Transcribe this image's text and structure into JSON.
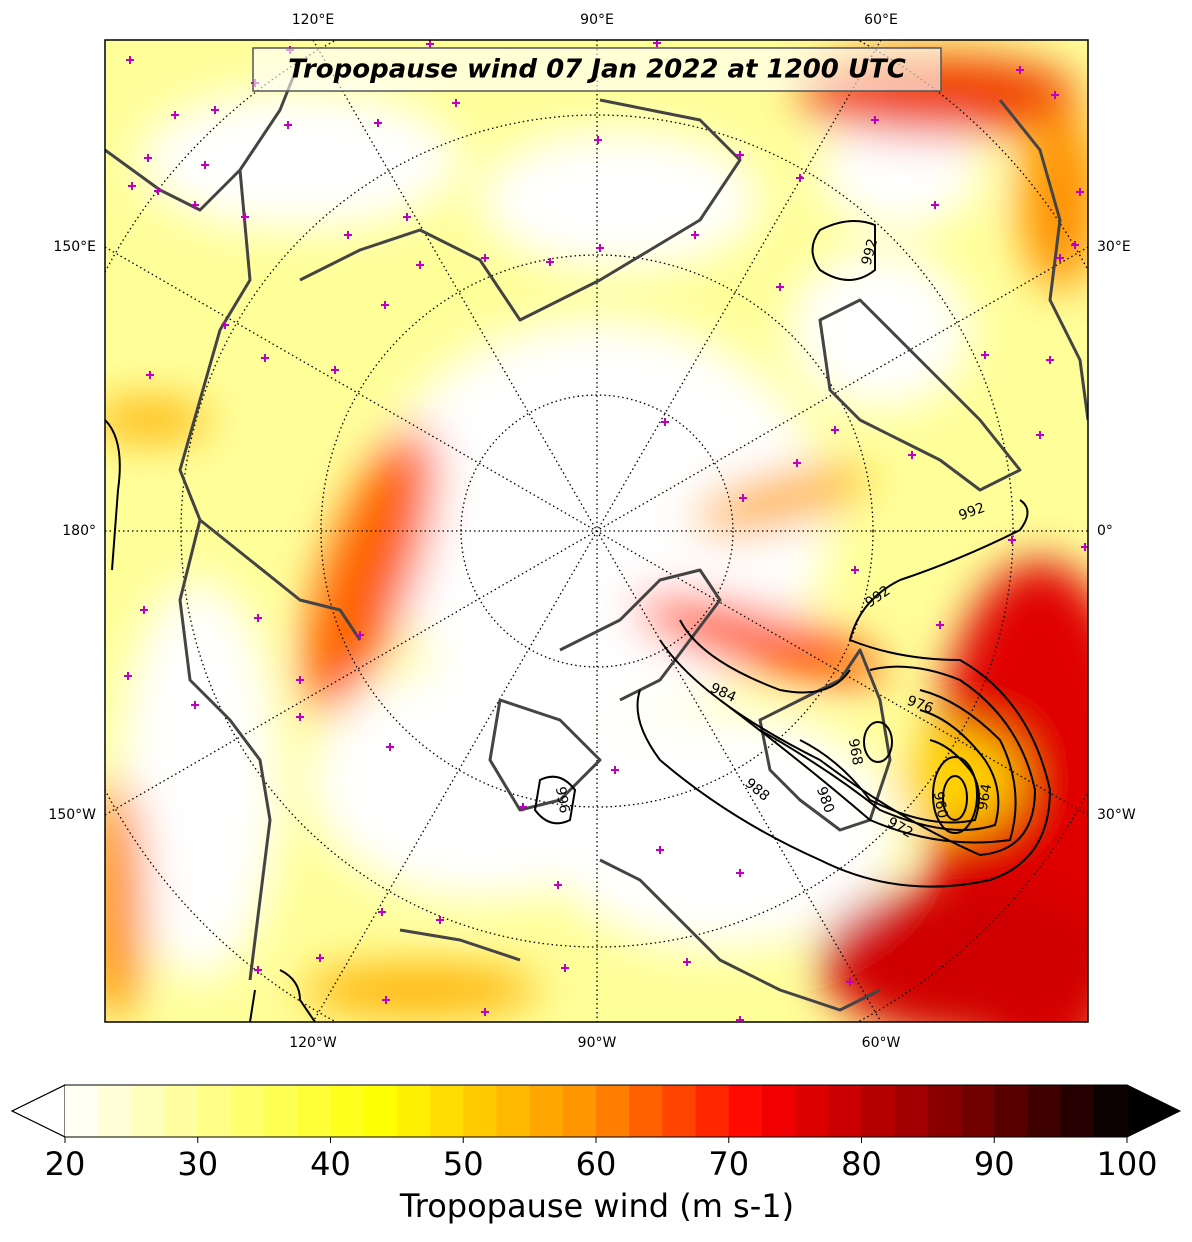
{
  "map": {
    "title": "Tropopause wind 07 Jan 2022 at 1200 UTC",
    "longitude_labels": {
      "top": [
        "120°E",
        "90°E",
        "60°E"
      ],
      "left": [
        "150°E",
        "180°",
        "150°W"
      ],
      "right": [
        "30°E",
        "0°",
        "30°W"
      ],
      "bottom": [
        "120°W",
        "90°W",
        "60°W"
      ]
    },
    "contour_labels": [
      "992",
      "992",
      "992",
      "984",
      "976",
      "988",
      "980",
      "968",
      "960",
      "964",
      "972",
      "996"
    ]
  },
  "colorbar": {
    "label": "Tropopause wind (m s-1)",
    "lim": [
      20,
      100
    ],
    "ticks": [
      20,
      30,
      40,
      50,
      60,
      70,
      80,
      90,
      100
    ]
  }
}
